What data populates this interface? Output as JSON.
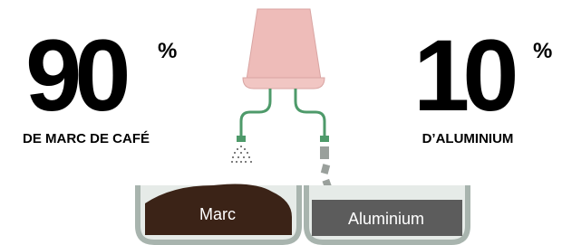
{
  "left": {
    "value": 90,
    "unit": "%",
    "label": "DE MARC DE CAFÉ"
  },
  "right": {
    "value": 10,
    "unit": "%",
    "label": "D’ALUMINIUM"
  },
  "bins": [
    "Marc",
    "Aluminium"
  ]
}
